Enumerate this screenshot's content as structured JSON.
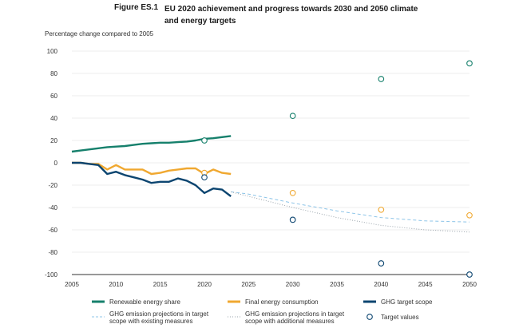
{
  "figure": {
    "label": "Figure ES.1",
    "title": "EU 2020 achievement and progress towards 2030 and 2050 climate and energy targets"
  },
  "colors": {
    "renewable": "#16806c",
    "final_energy": "#f0a830",
    "ghg": "#0c4570",
    "proj_existing": "#8cc4e8",
    "proj_additional": "#9aa4ac",
    "grid": "#dcdcdc",
    "axis": "#333333"
  },
  "chart_data": {
    "type": "line",
    "ylabel": "Percentage change compared to 2005",
    "xlim": [
      2005,
      2050
    ],
    "ylim": [
      -100,
      100
    ],
    "x_ticks": [
      2005,
      2010,
      2015,
      2020,
      2025,
      2030,
      2035,
      2040,
      2045,
      2050
    ],
    "y_ticks": [
      100,
      80,
      60,
      40,
      20,
      0,
      -20,
      -40,
      -60,
      -80,
      -100
    ],
    "grid": true,
    "legend_position": "bottom",
    "series": [
      {
        "name": "Renewable energy share",
        "style": "solid",
        "color_key": "renewable",
        "x": [
          2005,
          2006,
          2007,
          2008,
          2009,
          2010,
          2011,
          2012,
          2013,
          2014,
          2015,
          2016,
          2017,
          2018,
          2019,
          2020,
          2021,
          2022,
          2023
        ],
        "y": [
          10,
          11,
          12,
          13,
          14,
          14.5,
          15,
          16,
          17,
          17.5,
          18,
          18,
          18.5,
          19,
          20,
          21.5,
          22,
          23,
          24
        ]
      },
      {
        "name": "Final energy consumption",
        "style": "solid",
        "color_key": "final_energy",
        "x": [
          2005,
          2006,
          2007,
          2008,
          2009,
          2010,
          2011,
          2012,
          2013,
          2014,
          2015,
          2016,
          2017,
          2018,
          2019,
          2020,
          2021,
          2022,
          2023
        ],
        "y": [
          0,
          0,
          -1,
          -1,
          -6,
          -2,
          -6,
          -6,
          -6,
          -10,
          -9,
          -7,
          -6,
          -5,
          -5,
          -10,
          -6,
          -9,
          -10
        ]
      },
      {
        "name": "GHG target scope",
        "style": "solid",
        "color_key": "ghg",
        "x": [
          2005,
          2006,
          2007,
          2008,
          2009,
          2010,
          2011,
          2012,
          2013,
          2014,
          2015,
          2016,
          2017,
          2018,
          2019,
          2020,
          2021,
          2022,
          2023
        ],
        "y": [
          0,
          0,
          -1,
          -2,
          -10,
          -8,
          -11,
          -13,
          -15,
          -18,
          -17,
          -17,
          -14,
          -16,
          -20,
          -27,
          -23,
          -24,
          -30
        ]
      },
      {
        "name": "GHG emission projections in target scope with existing measures",
        "style": "dashed",
        "color_key": "proj_existing",
        "x": [
          2023,
          2025,
          2030,
          2035,
          2040,
          2045,
          2050
        ],
        "y": [
          -26,
          -28,
          -36,
          -43,
          -49,
          -52,
          -53
        ]
      },
      {
        "name": "GHG emission projections in target scope with additional measures",
        "style": "dotted",
        "color_key": "proj_additional",
        "x": [
          2023,
          2025,
          2030,
          2035,
          2040,
          2045,
          2050
        ],
        "y": [
          -26,
          -30,
          -40,
          -49,
          -56,
          -60,
          -62
        ]
      }
    ],
    "targets": {
      "name": "Target values",
      "points": [
        {
          "x": 2020,
          "y": 20,
          "color_key": "renewable"
        },
        {
          "x": 2020,
          "y": -9,
          "color_key": "final_energy"
        },
        {
          "x": 2020,
          "y": -13,
          "color_key": "ghg"
        },
        {
          "x": 2030,
          "y": 42,
          "color_key": "renewable"
        },
        {
          "x": 2030,
          "y": -27,
          "color_key": "final_energy"
        },
        {
          "x": 2030,
          "y": -51,
          "color_key": "ghg"
        },
        {
          "x": 2040,
          "y": 75,
          "color_key": "renewable"
        },
        {
          "x": 2040,
          "y": -42,
          "color_key": "final_energy"
        },
        {
          "x": 2040,
          "y": -90,
          "color_key": "ghg"
        },
        {
          "x": 2050,
          "y": 89,
          "color_key": "renewable"
        },
        {
          "x": 2050,
          "y": -47,
          "color_key": "final_energy"
        },
        {
          "x": 2050,
          "y": -100,
          "color_key": "ghg"
        }
      ]
    },
    "legend": [
      {
        "label": "Renewable energy share",
        "marker": "line",
        "color_key": "renewable"
      },
      {
        "label": "Final energy consumption",
        "marker": "line",
        "color_key": "final_energy"
      },
      {
        "label": "GHG target scope",
        "marker": "line",
        "color_key": "ghg"
      },
      {
        "label": "GHG emission projections in target scope with existing measures",
        "lines": [
          "GHG emission projections in target",
          "scope with existing measures"
        ],
        "marker": "dashed",
        "color_key": "proj_existing"
      },
      {
        "label": "GHG emission projections in target scope with additional measures",
        "lines": [
          "GHG emission projections in target",
          "scope with additional measures"
        ],
        "marker": "dotted",
        "color_key": "proj_additional"
      },
      {
        "label": "Target values",
        "marker": "circle",
        "color_key": "ghg"
      }
    ]
  }
}
